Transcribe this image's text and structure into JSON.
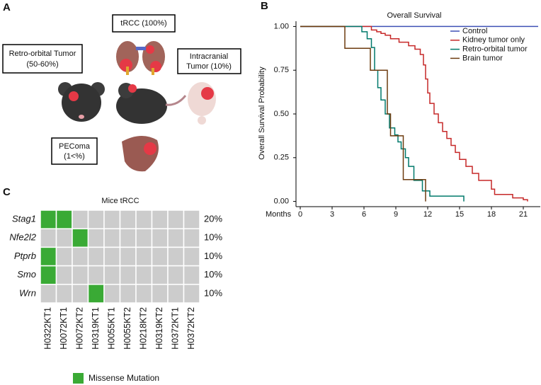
{
  "panel_labels": [
    "A",
    "B",
    "C"
  ],
  "diagram": {
    "boxes": [
      [
        "tRCC (100%)"
      ],
      [
        "Retro-orbital Tumor",
        "(50-60%)"
      ],
      [
        "Intracranial",
        "Tumor (10%)"
      ],
      [
        "PEComa",
        "(1<%)"
      ]
    ]
  },
  "chart_data": [
    {
      "type": "survival",
      "title": "Overall Survival",
      "ylabel": "Overall Survival Probability",
      "xlabel": "Months",
      "xlim": [
        -0.4,
        22.6
      ],
      "ylim": [
        -0.03,
        1.03
      ],
      "xticks": [
        0,
        3,
        6,
        9,
        12,
        15,
        18,
        21
      ],
      "yticks": [
        {
          "value": 0,
          "label": "0.00"
        },
        {
          "value": 0.25,
          "label": "0.25"
        },
        {
          "value": 0.5,
          "label": "0.50"
        },
        {
          "value": 0.75,
          "label": "0.75"
        },
        {
          "value": 1,
          "label": "1.00"
        }
      ],
      "legend": "top-right",
      "series": [
        {
          "name": "Control",
          "color": "#3f51b5",
          "x": [
            0,
            22.4
          ],
          "values": [
            1,
            1
          ]
        },
        {
          "name": "Kidney tumor only",
          "color": "#c62828",
          "x": [
            0,
            6.7,
            7.2,
            7.6,
            8.0,
            8.5,
            9.3,
            10.2,
            10.8,
            11.3,
            11.6,
            11.8,
            12.0,
            12.2,
            12.6,
            13.0,
            13.4,
            13.8,
            14.2,
            14.6,
            15.0,
            15.6,
            16.2,
            16.8,
            18.0,
            18.3,
            20.0,
            21.0,
            21.4
          ],
          "values": [
            1,
            0.98,
            0.97,
            0.96,
            0.95,
            0.93,
            0.91,
            0.89,
            0.87,
            0.84,
            0.78,
            0.7,
            0.62,
            0.56,
            0.5,
            0.45,
            0.4,
            0.36,
            0.32,
            0.28,
            0.24,
            0.2,
            0.16,
            0.12,
            0.07,
            0.04,
            0.02,
            0.01,
            0.0
          ]
        },
        {
          "name": "Retro-orbital tumor",
          "color": "#00796b",
          "x": [
            0,
            5.8,
            6.3,
            6.7,
            7.0,
            7.3,
            7.6,
            8.0,
            8.4,
            8.9,
            9.2,
            9.5,
            9.9,
            10.2,
            10.7,
            11.5,
            12.2,
            15.4
          ],
          "values": [
            1,
            0.97,
            0.93,
            0.88,
            0.75,
            0.65,
            0.58,
            0.5,
            0.42,
            0.38,
            0.34,
            0.3,
            0.25,
            0.2,
            0.12,
            0.06,
            0.03,
            0.0
          ]
        },
        {
          "name": "Brain tumor",
          "color": "#6d3b0f",
          "x": [
            0,
            4.2,
            6.6,
            8.2,
            8.5,
            9.7,
            11.8
          ],
          "values": [
            1,
            0.875,
            0.75,
            0.5,
            0.375,
            0.125,
            0
          ]
        }
      ]
    },
    {
      "type": "heatmap",
      "title": "Mice tRCC",
      "rows": [
        "Stag1",
        "Nfe2l2",
        "Ptprb",
        "Smo",
        "Wrn"
      ],
      "columns": [
        "H0322KT1",
        "H0072KT1",
        "H0072KT2",
        "H0319KT1",
        "H0055KT1",
        "H0055KT2",
        "H0218KT2",
        "H0319KT2",
        "H0372KT1",
        "H0372KT2"
      ],
      "matrix": [
        [
          1,
          1,
          0,
          0,
          0,
          0,
          0,
          0,
          0,
          0
        ],
        [
          0,
          0,
          1,
          0,
          0,
          0,
          0,
          0,
          0,
          0
        ],
        [
          1,
          0,
          0,
          0,
          0,
          0,
          0,
          0,
          0,
          0
        ],
        [
          1,
          0,
          0,
          0,
          0,
          0,
          0,
          0,
          0,
          0
        ],
        [
          0,
          0,
          0,
          1,
          0,
          0,
          0,
          0,
          0,
          0
        ]
      ],
      "values": [
        20,
        10,
        10,
        10,
        10
      ],
      "value_labels": [
        "20%",
        "10%",
        "10%",
        "10%",
        "10%"
      ],
      "colors": {
        "on": "#3aaa35",
        "off": "#cccccc"
      },
      "legend": "Missense Mutation"
    }
  ]
}
